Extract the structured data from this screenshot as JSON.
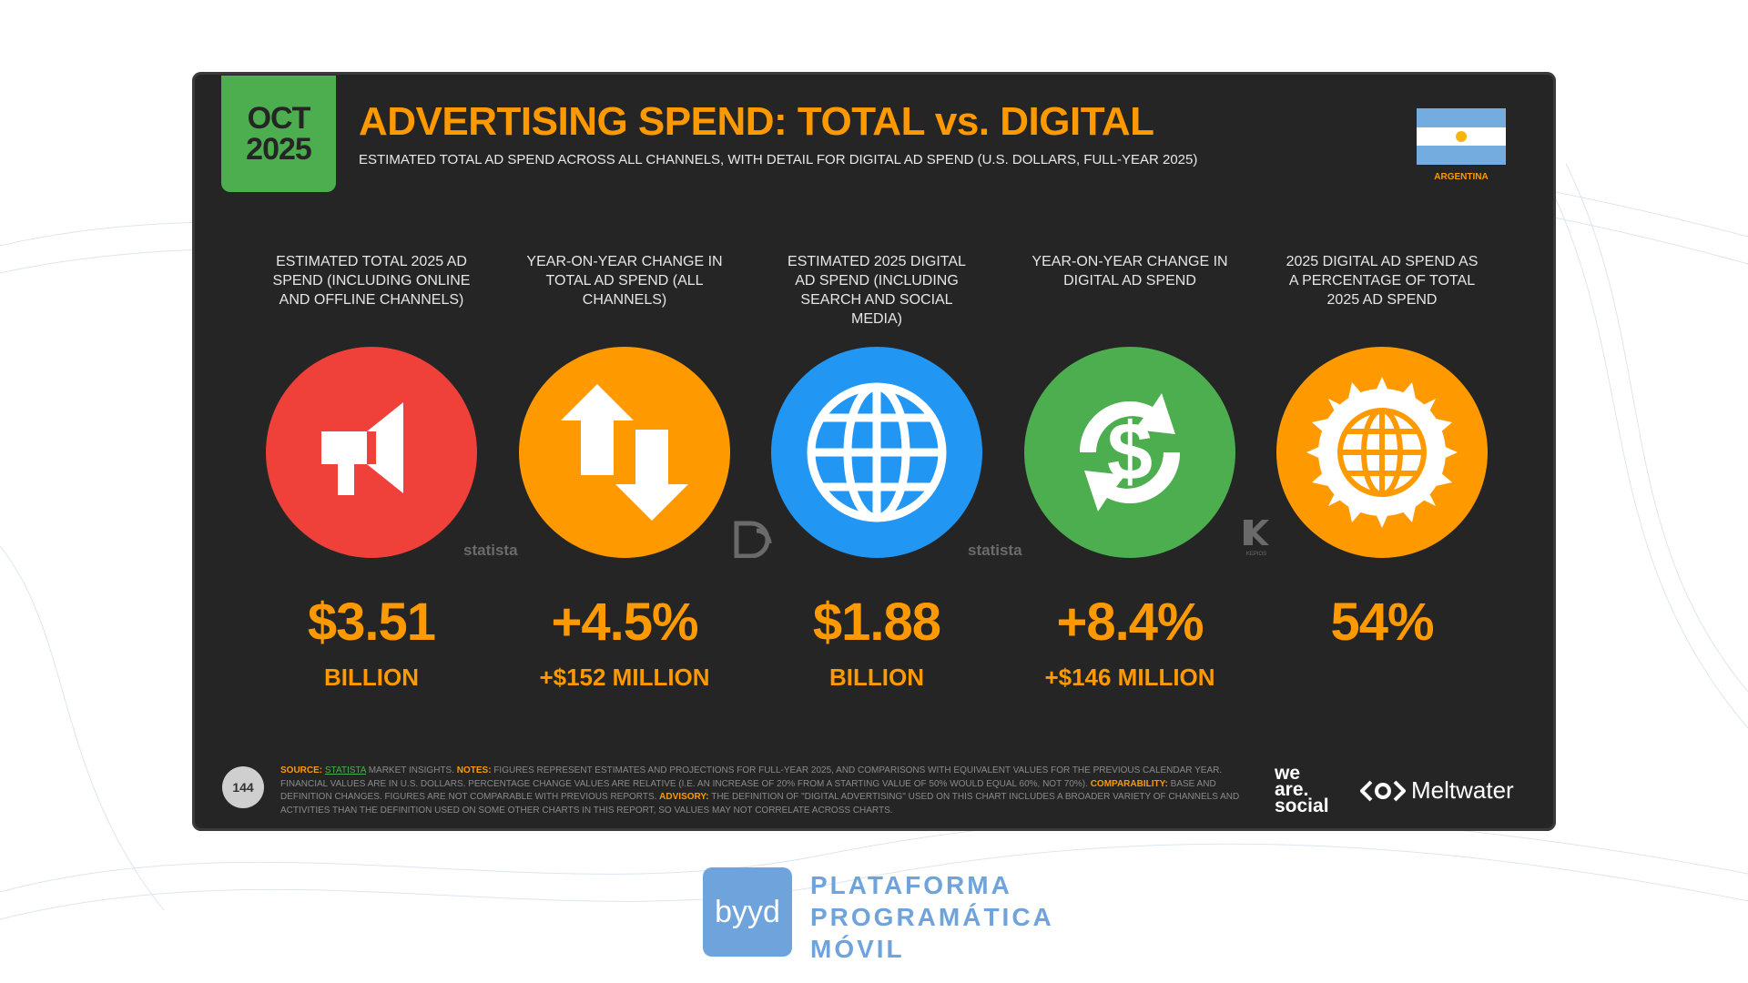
{
  "header": {
    "month": "OCT",
    "year": "2025",
    "title": "ADVERTISING SPEND: TOTAL vs. DIGITAL",
    "subtitle": "ESTIMATED TOTAL AD SPEND ACROSS ALL CHANNELS, WITH DETAIL FOR DIGITAL AD SPEND (U.S. DOLLARS, FULL-YEAR 2025)",
    "country": "ARGENTINA"
  },
  "stats": [
    {
      "label": "ESTIMATED TOTAL 2025 AD SPEND (INCLUDING ONLINE AND OFFLINE CHANNELS)",
      "value": "$3.51",
      "unit": "BILLION",
      "icon": "megaphone-icon",
      "color": "#f0403a"
    },
    {
      "label": "YEAR-ON-YEAR CHANGE IN TOTAL AD SPEND (ALL CHANNELS)",
      "value": "+4.5%",
      "unit": "+$152 MILLION",
      "icon": "up-down-arrows-icon",
      "color": "#ff9900"
    },
    {
      "label": "ESTIMATED 2025 DIGITAL AD SPEND (INCLUDING SEARCH AND SOCIAL MEDIA)",
      "value": "$1.88",
      "unit": "BILLION",
      "icon": "globe-icon",
      "color": "#2196f3"
    },
    {
      "label": "YEAR-ON-YEAR CHANGE IN DIGITAL AD SPEND",
      "value": "+8.4%",
      "unit": "+$146 MILLION",
      "icon": "dollar-cycle-icon",
      "color": "#4cae4f"
    },
    {
      "label": "2025 DIGITAL AD SPEND AS A PERCENTAGE OF TOTAL 2025 AD SPEND",
      "value": "54%",
      "unit": "",
      "icon": "globe-badge-icon",
      "color": "#ff9900"
    }
  ],
  "watermarks": {
    "statista_1": "statista",
    "statista_2": "statista",
    "kepios": "KEPIOS"
  },
  "footer": {
    "page_number": "144",
    "source_label": "SOURCE:",
    "source_link": "STATISTA",
    "source_text": " MARKET INSIGHTS. ",
    "notes_label": "NOTES:",
    "notes_text": " FIGURES REPRESENT ESTIMATES AND PROJECTIONS FOR FULL-YEAR 2025, AND COMPARISONS WITH EQUIVALENT VALUES FOR THE PREVIOUS CALENDAR YEAR. FINANCIAL VALUES ARE IN U.S. DOLLARS. PERCENTAGE CHANGE VALUES ARE RELATIVE (I.E. AN INCREASE OF 20% FROM A STARTING VALUE OF 50% WOULD EQUAL 60%, NOT 70%). ",
    "comparability_label": "COMPARABILITY:",
    "comparability_text": " BASE AND DEFINITION CHANGES. FIGURES ARE NOT COMPARABLE WITH PREVIOUS REPORTS. ",
    "advisory_label": "ADVISORY:",
    "advisory_text": " THE DEFINITION OF \"DIGITAL ADVERTISING\" USED ON THIS CHART INCLUDES A BROADER VARIETY OF CHANNELS AND ACTIVITIES THAN THE DEFINITION USED ON SOME OTHER CHARTS IN THIS REPORT, SO VALUES MAY NOT CORRELATE ACROSS CHARTS.",
    "we_are_social": [
      "we",
      "are.",
      "social"
    ],
    "meltwater": "Meltwater"
  },
  "branding": {
    "logo": "byyd",
    "lines": [
      "PLATAFORMA",
      "PROGRAMÁTICA",
      "MÓVIL"
    ]
  }
}
